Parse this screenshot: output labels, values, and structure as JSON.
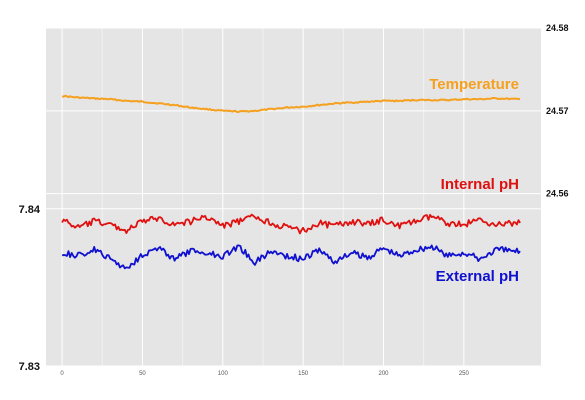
{
  "chart_data": {
    "type": "line",
    "grid": true,
    "x_axis": {
      "range": [
        -10,
        298
      ],
      "ticks": [
        0,
        50,
        100,
        150,
        200,
        250
      ],
      "tick_labels": [
        "0",
        "50",
        "100",
        "150",
        "200",
        "250"
      ]
    },
    "y_left": {
      "range": [
        7.83,
        7.8515
      ],
      "ticks": [
        7.83,
        7.84
      ],
      "tick_labels": [
        "7.83",
        "7.84"
      ]
    },
    "y_right": {
      "range": [
        24.5392,
        24.58
      ],
      "ticks": [
        24.56,
        24.57,
        24.58
      ],
      "tick_labels": [
        "24.56",
        "24.57",
        "24.58"
      ]
    },
    "series": [
      {
        "name": "Temperature",
        "axis": "right",
        "color": "#F5A01E",
        "x": [
          0,
          10,
          20,
          30,
          40,
          50,
          60,
          70,
          80,
          90,
          100,
          110,
          120,
          130,
          140,
          150,
          160,
          170,
          180,
          190,
          200,
          210,
          220,
          230,
          240,
          250,
          260,
          270,
          285
        ],
        "y": [
          24.5718,
          24.5716,
          24.5715,
          24.5714,
          24.5712,
          24.5711,
          24.5709,
          24.5707,
          24.5704,
          24.5702,
          24.57,
          24.5699,
          24.57,
          24.5702,
          24.5704,
          24.5705,
          24.5707,
          24.5709,
          24.571,
          24.5711,
          24.5712,
          24.5712,
          24.5713,
          24.5713,
          24.5713,
          24.5714,
          24.5714,
          24.5715,
          24.5714
        ]
      },
      {
        "name": "Internal pH",
        "axis": "left",
        "color": "#E01010",
        "x": [
          0,
          10,
          20,
          30,
          40,
          50,
          60,
          70,
          80,
          90,
          100,
          110,
          120,
          130,
          140,
          150,
          160,
          170,
          180,
          190,
          200,
          210,
          220,
          230,
          240,
          250,
          260,
          270,
          285
        ],
        "y": [
          7.8393,
          7.8388,
          7.8392,
          7.839,
          7.8386,
          7.8392,
          7.8394,
          7.839,
          7.8392,
          7.8395,
          7.8389,
          7.8392,
          7.8395,
          7.8391,
          7.8388,
          7.8386,
          7.8391,
          7.8389,
          7.8392,
          7.839,
          7.8393,
          7.8389,
          7.8392,
          7.8395,
          7.8391,
          7.839,
          7.8393,
          7.839,
          7.8391
        ]
      },
      {
        "name": "External pH",
        "axis": "left",
        "color": "#1010D0",
        "x": [
          0,
          10,
          20,
          30,
          40,
          50,
          60,
          70,
          80,
          90,
          100,
          110,
          120,
          130,
          140,
          150,
          160,
          170,
          180,
          190,
          200,
          210,
          220,
          230,
          240,
          250,
          260,
          270,
          285
        ],
        "y": [
          7.8372,
          7.837,
          7.8374,
          7.8368,
          7.8362,
          7.8371,
          7.8375,
          7.8368,
          7.8373,
          7.8372,
          7.837,
          7.8376,
          7.8366,
          7.8373,
          7.837,
          7.8368,
          7.8374,
          7.8366,
          7.8372,
          7.8369,
          7.8375,
          7.837,
          7.8374,
          7.8376,
          7.837,
          7.8372,
          7.8368,
          7.8374,
          7.8373
        ]
      }
    ]
  },
  "plot_background": "#E5E5E5",
  "grid_color": "#FFFFFF"
}
